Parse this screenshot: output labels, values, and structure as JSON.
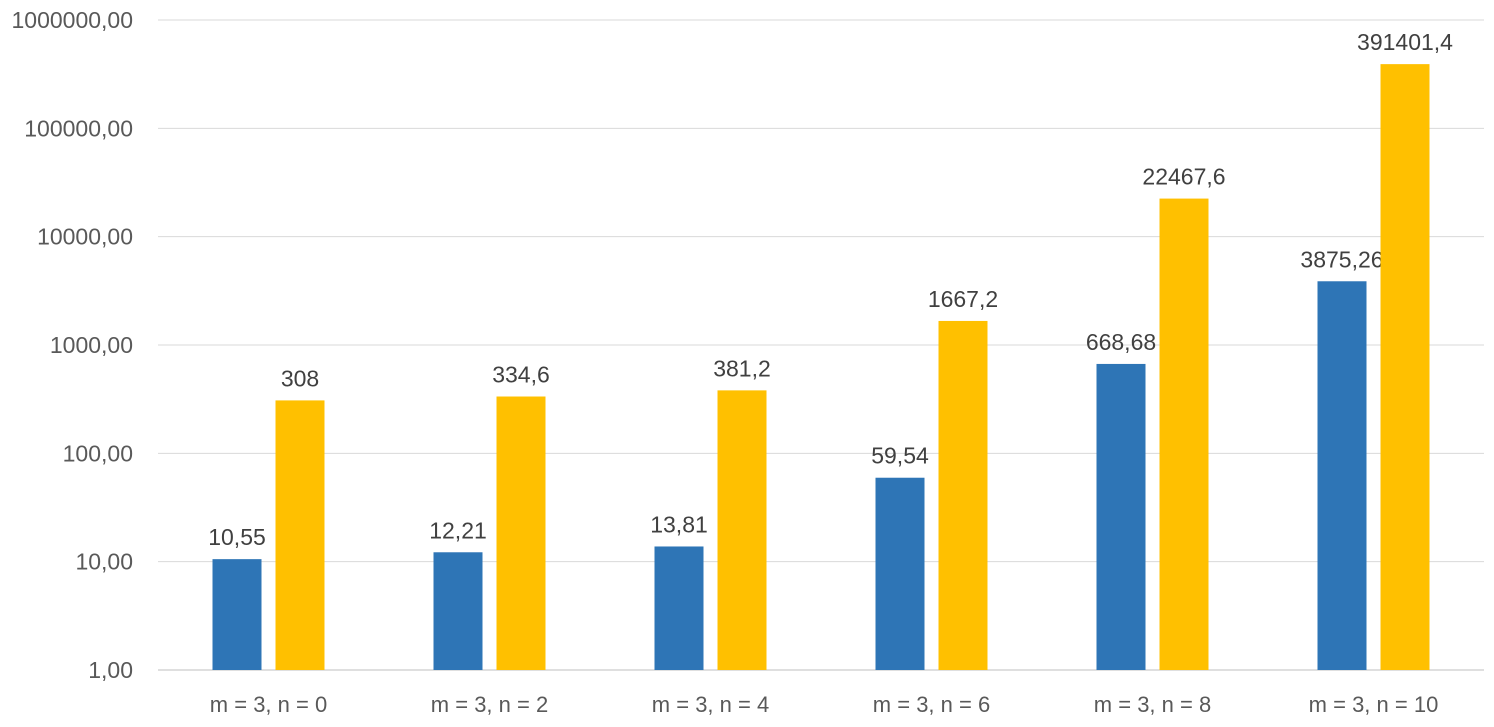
{
  "chart_data": {
    "type": "bar",
    "title": "",
    "xlabel": "",
    "ylabel": "",
    "yscale": "log10",
    "ylim": [
      1,
      1000000
    ],
    "grid": true,
    "legend": "none",
    "categories": [
      "m = 3, n = 0",
      "m = 3, n = 2",
      "m = 3, n = 4",
      "m = 3, n = 6",
      "m = 3, n = 8",
      "m = 3, n = 10"
    ],
    "y_tick_labels": [
      "1,00",
      "10,00",
      "100,00",
      "1000,00",
      "10000,00",
      "100000,00",
      "1000000,00"
    ],
    "series": [
      {
        "color": "#2e75b6",
        "values": [
          10.55,
          12.21,
          13.81,
          59.54,
          668.68,
          3875.26
        ],
        "labels": [
          "10,55",
          "12,21",
          "13,81",
          "59,54",
          "668,68",
          "3875,26"
        ]
      },
      {
        "color": "#ffc000",
        "values": [
          308,
          334.6,
          381.2,
          1667.2,
          22467.6,
          391401.4
        ],
        "labels": [
          "308",
          "334,6",
          "381,2",
          "1667,2",
          "22467,6",
          "391401,4"
        ]
      }
    ]
  }
}
